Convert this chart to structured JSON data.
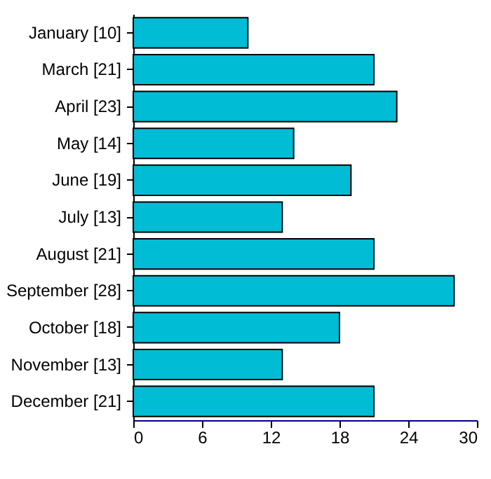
{
  "chart_data": {
    "type": "bar",
    "orientation": "horizontal",
    "categories": [
      "January [10]",
      "March [21]",
      "April [23]",
      "May [14]",
      "June [19]",
      "July [13]",
      "August [21]",
      "September [28]",
      "October [18]",
      "November [13]",
      "December [21]"
    ],
    "values": [
      10,
      21,
      23,
      14,
      19,
      13,
      21,
      28,
      18,
      13,
      21
    ],
    "color": "#00bcd4",
    "xlim": [
      0,
      30
    ],
    "xticks": [
      0,
      6,
      12,
      18,
      24,
      30
    ],
    "grid": false
  }
}
